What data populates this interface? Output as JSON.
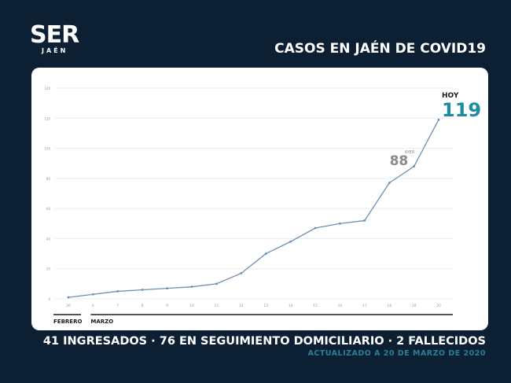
{
  "logo": {
    "main": "SER",
    "sub": "JAÉN"
  },
  "title": "CASOS EN JAÉN DE COVID19",
  "chart_data": {
    "type": "line",
    "title": "CASOS EN JAÉN DE COVID19",
    "categories": [
      "26",
      "6",
      "7",
      "8",
      "9",
      "10",
      "11",
      "12",
      "13",
      "14",
      "15",
      "16",
      "17",
      "18",
      "19",
      "20"
    ],
    "month_groups": [
      {
        "label": "FEBRERO",
        "categories": [
          "26"
        ]
      },
      {
        "label": "MARZO",
        "categories": [
          "6",
          "7",
          "8",
          "9",
          "10",
          "11",
          "12",
          "13",
          "14",
          "15",
          "16",
          "17",
          "18",
          "19",
          "20"
        ]
      }
    ],
    "values": [
      1,
      3,
      5,
      6,
      7,
      8,
      10,
      17,
      30,
      38,
      47,
      50,
      52,
      77,
      88,
      119
    ],
    "ylim": [
      0,
      140
    ],
    "yticks": [
      0,
      20,
      40,
      60,
      80,
      100,
      120,
      140
    ],
    "grid": true,
    "line_color": "#6f8fb0",
    "annotations": [
      {
        "category": "19",
        "label": "AYER",
        "value_text": "88",
        "color": "#8a8a8a"
      },
      {
        "category": "20",
        "label": "HOY",
        "value_text": "119",
        "color": "#1f8aa0"
      }
    ]
  },
  "footer": {
    "summary": "41 INGRESADOS · 76 EN SEGUIMIENTO DOMICILIARIO · 2 FALLECIDOS",
    "updated": "ACTUALIZADO A 20 DE MARZO DE 2020"
  }
}
